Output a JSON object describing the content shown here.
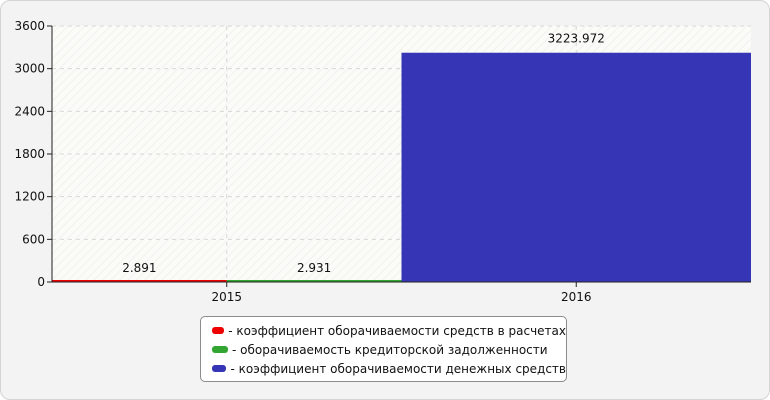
{
  "chart_data": {
    "type": "bar",
    "categories": [
      "2015",
      "2016"
    ],
    "series": [
      {
        "name": "коэффициент оборачиваемости средств в расчетах",
        "color": "#ee0000",
        "values": [
          2.891,
          null
        ],
        "labels": [
          "2.891",
          null
        ]
      },
      {
        "name": "оборачиваемость кредиторской задолженности",
        "color": "#33a532",
        "values": [
          2.931,
          null
        ],
        "labels": [
          "2.931",
          null
        ]
      },
      {
        "name": "коэффициент оборачиваемости денежных средств",
        "color": "#3535b5",
        "values": [
          null,
          3223.972
        ],
        "labels": [
          null,
          "3223.972"
        ]
      }
    ],
    "ylim": [
      0,
      3600
    ],
    "yticks": [
      0,
      600,
      1200,
      1800,
      2400,
      3000,
      3600
    ],
    "grid": true,
    "legend_position": "bottom-center"
  },
  "legend": {
    "prefix": "- "
  }
}
